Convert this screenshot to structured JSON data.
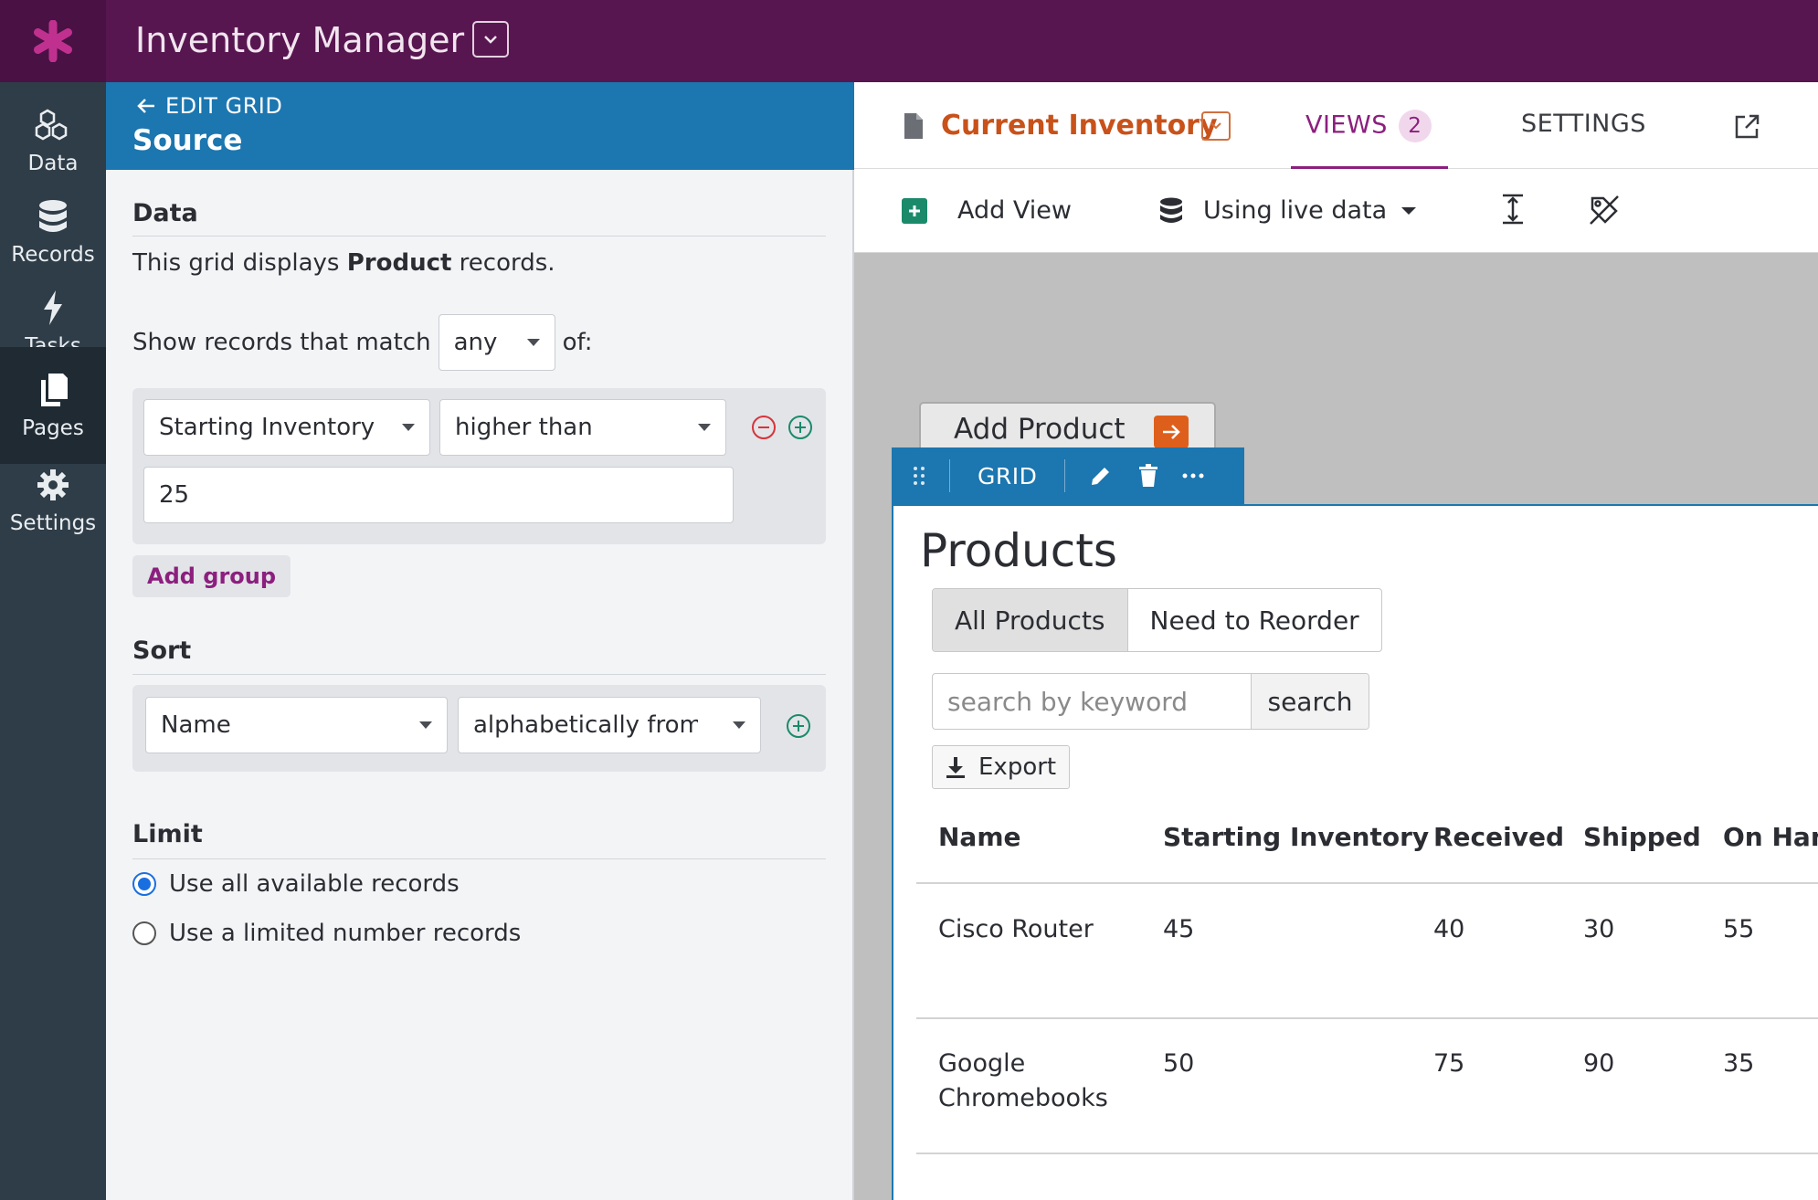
{
  "app": {
    "title": "Inventory Manager"
  },
  "nav": [
    {
      "label": "Data",
      "icon": "cubes-icon"
    },
    {
      "label": "Records",
      "icon": "database-icon"
    },
    {
      "label": "Tasks",
      "icon": "bolt-icon"
    },
    {
      "label": "Pages",
      "icon": "pages-icon",
      "active": true
    },
    {
      "label": "Settings",
      "icon": "gear-icon"
    }
  ],
  "panel": {
    "back_label": "EDIT GRID",
    "title": "Source",
    "data_section": "Data",
    "desc_prefix": "This grid displays ",
    "desc_object": "Product",
    "desc_suffix": " records.",
    "match_label": "Show records that match",
    "match_value": "any",
    "match_suffix": "of:",
    "filter": {
      "field": "Starting Inventory",
      "operator": "higher than",
      "value": "25"
    },
    "add_group": "Add group",
    "sort_section": "Sort",
    "sort": {
      "field": "Name",
      "order": "alphabetically from a"
    },
    "limit_section": "Limit",
    "limit_options": [
      "Use all available records",
      "Use a limited number records"
    ],
    "limit_selected": 0
  },
  "page": {
    "name": "Current Inventory",
    "tabs": {
      "views": "VIEWS",
      "views_count": "2",
      "settings": "SETTINGS"
    },
    "toolbar": {
      "add_view": "Add View",
      "data_mode": "Using live data"
    }
  },
  "view": {
    "add_product": "Add Product",
    "gridbar_label": "GRID",
    "title": "Products",
    "filter_tabs": [
      "All Products",
      "Need to Reorder"
    ],
    "search": {
      "placeholder": "search by keyword",
      "button": "search"
    },
    "export": "Export",
    "table": {
      "columns": [
        "Name",
        "Starting Inventory",
        "Received",
        "Shipped",
        "On Hand"
      ],
      "rows": [
        [
          "Cisco Router",
          "45",
          "40",
          "30",
          "55"
        ],
        [
          "Google Chromebooks",
          "50",
          "75",
          "90",
          "35"
        ]
      ]
    }
  },
  "colors": {
    "topbar": "#581650",
    "accent": "#8c1f7e",
    "panel_head": "#1c76af",
    "page_name": "#c8521a",
    "add_icon": "#1a8a6a"
  }
}
